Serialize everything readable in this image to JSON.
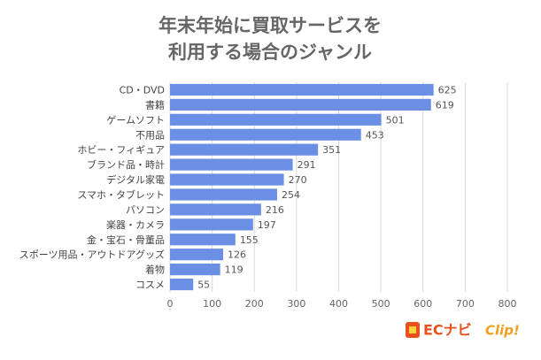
{
  "chart_data": {
    "type": "bar",
    "orientation": "horizontal",
    "title": [
      "年末年始に買取サービスを",
      "利用する場合のジャンル"
    ],
    "categories": [
      "CD・DVD",
      "書籍",
      "ゲームソフト",
      "不用品",
      "ホビー・フィギュア",
      "ブランド品・時計",
      "デジタル家電",
      "スマホ・タブレット",
      "パソコン",
      "楽器・カメラ",
      "金・宝石・骨董品",
      "スポーツ用品・アウトドアグッズ",
      "着物",
      "コスメ"
    ],
    "values": [
      625,
      619,
      501,
      453,
      351,
      291,
      270,
      254,
      216,
      197,
      155,
      126,
      119,
      55
    ],
    "color": "#6b8fe4",
    "xlim": [
      0,
      800
    ],
    "xticks": [
      0,
      100,
      200,
      300,
      400,
      500,
      600,
      700,
      800
    ],
    "grid": true
  },
  "logo": {
    "brand": "ECナビ",
    "sub": "Clip!"
  }
}
